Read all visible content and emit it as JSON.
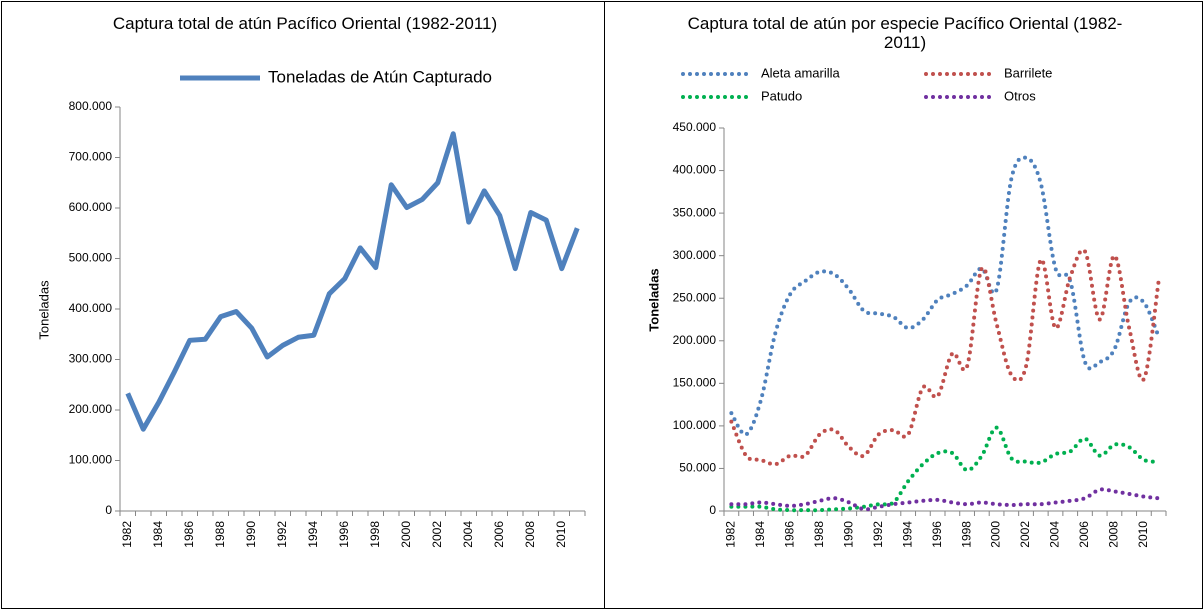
{
  "chart_data": [
    {
      "type": "line",
      "title": "Captura total de atún Pacífico Oriental (1982-2011)",
      "y_label": "Toneladas",
      "categories": [
        "1982",
        null,
        "1984",
        null,
        "1986",
        null,
        "1988",
        null,
        "1990",
        null,
        "1992",
        null,
        "1994",
        null,
        "1996",
        null,
        "1998",
        null,
        "2000",
        null,
        "2002",
        null,
        "2004",
        null,
        "2006",
        null,
        "2008",
        null,
        "2010",
        null
      ],
      "series": [
        {
          "name": "Toneladas de Atún Capturado",
          "color": "#4f81bd",
          "values": [
            233000,
            162000,
            215000,
            275000,
            338000,
            340000,
            385000,
            395000,
            362000,
            305000,
            328000,
            344000,
            348000,
            430000,
            460000,
            521000,
            482000,
            646000,
            601000,
            617000,
            650000,
            747000,
            572000,
            634000,
            585000,
            480000,
            591000,
            576000,
            480000,
            560000
          ]
        }
      ],
      "ylim": [
        0,
        800000
      ],
      "yticks": [
        0,
        {
          "value": 100000,
          "label": "100.000"
        },
        {
          "value": 200000,
          "label": "200.000"
        },
        {
          "value": 300000,
          "label": "300.000"
        },
        {
          "value": 400000,
          "label": "400.000"
        },
        {
          "value": 500000,
          "label": "500.000"
        },
        {
          "value": 600000,
          "label": "600.000"
        },
        {
          "value": 700000,
          "label": "700.000"
        },
        {
          "value": 800000,
          "label": "800.000"
        }
      ],
      "line_style": "solid",
      "legend": "top"
    },
    {
      "type": "line",
      "title": "Captura total de atún por especie Pacífico Oriental (1982-2011)",
      "y_label": "Toneladas",
      "categories": [
        "1982",
        null,
        "1984",
        null,
        "1986",
        null,
        "1988",
        null,
        "1990",
        null,
        "1992",
        null,
        "1994",
        null,
        "1996",
        null,
        "1998",
        null,
        "2000",
        null,
        "2002",
        null,
        "2004",
        null,
        "2006",
        null,
        "2008",
        null,
        "2010",
        null
      ],
      "series": [
        {
          "name": "Aleta amarilla",
          "color": "#4f81bd",
          "values": [
            115000,
            90000,
            130000,
            210000,
            255000,
            270000,
            281000,
            278000,
            260000,
            235000,
            232000,
            228000,
            215000,
            225000,
            248000,
            255000,
            265000,
            285000,
            260000,
            390000,
            415000,
            385000,
            285000,
            270000,
            175000,
            175000,
            190000,
            245000,
            245000,
            205000
          ]
        },
        {
          "name": "Barrilete",
          "color": "#c0504d",
          "values": [
            105000,
            65000,
            60000,
            55000,
            65000,
            65000,
            90000,
            95000,
            75000,
            65000,
            90000,
            95000,
            90000,
            145000,
            135000,
            185000,
            170000,
            285000,
            220000,
            160000,
            170000,
            295000,
            215000,
            275000,
            305000,
            225000,
            300000,
            215000,
            155000,
            270000
          ]
        },
        {
          "name": "Patudo",
          "color": "#00b050",
          "values": [
            5000,
            5000,
            5000,
            2000,
            1000,
            1000,
            1000,
            2000,
            3000,
            5000,
            8000,
            10000,
            35000,
            55000,
            68000,
            68000,
            48000,
            65000,
            98000,
            62000,
            58000,
            57000,
            67000,
            70000,
            85000,
            65000,
            78000,
            75000,
            60000,
            58000
          ]
        },
        {
          "name": "Otros",
          "color": "#7030a0",
          "values": [
            8000,
            8000,
            10000,
            8000,
            6000,
            8000,
            12000,
            15000,
            10000,
            2000,
            5000,
            8000,
            10000,
            12000,
            13000,
            10000,
            8000,
            10000,
            8000,
            7000,
            8000,
            8000,
            10000,
            12000,
            15000,
            25000,
            23000,
            20000,
            17000,
            15000
          ]
        }
      ],
      "ylim": [
        0,
        450000
      ],
      "yticks": [
        0,
        {
          "value": 50000,
          "label": "50.000"
        },
        {
          "value": 100000,
          "label": "100.000"
        },
        {
          "value": 150000,
          "label": "150.000"
        },
        {
          "value": 200000,
          "label": "200.000"
        },
        {
          "value": 250000,
          "label": "250.000"
        },
        {
          "value": 300000,
          "label": "300.000"
        },
        {
          "value": 350000,
          "label": "350.000"
        },
        {
          "value": 400000,
          "label": "400.000"
        },
        {
          "value": 450000,
          "label": "450.000"
        }
      ],
      "line_style": "dotted",
      "legend": "top"
    }
  ]
}
